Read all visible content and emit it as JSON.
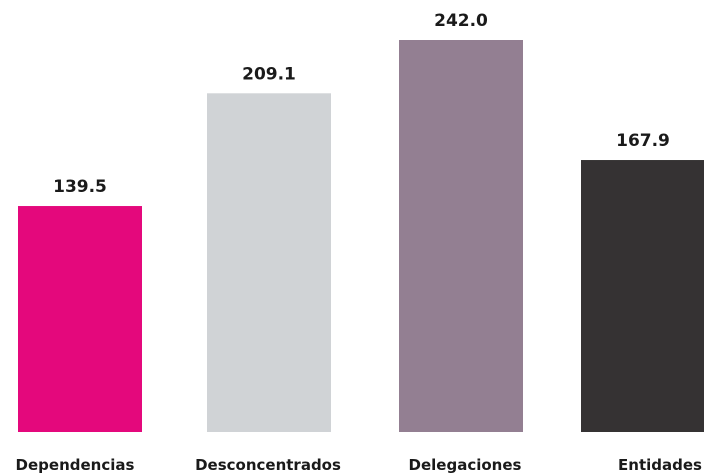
{
  "chart_data": {
    "type": "bar",
    "categories": [
      "Dependencias",
      "Desconcentrados",
      "Delegaciones",
      "Entidades"
    ],
    "values": [
      139.5,
      209.1,
      242.0,
      167.9
    ],
    "value_labels": [
      "139.5",
      "209.1",
      "242.0",
      "167.9"
    ],
    "colors": [
      "#e4087c",
      "#d0d3d6",
      "#937f92",
      "#353233"
    ],
    "title": "",
    "xlabel": "",
    "ylabel": "",
    "ylim": [
      0,
      242.0
    ],
    "grid": false,
    "legend": "none"
  }
}
